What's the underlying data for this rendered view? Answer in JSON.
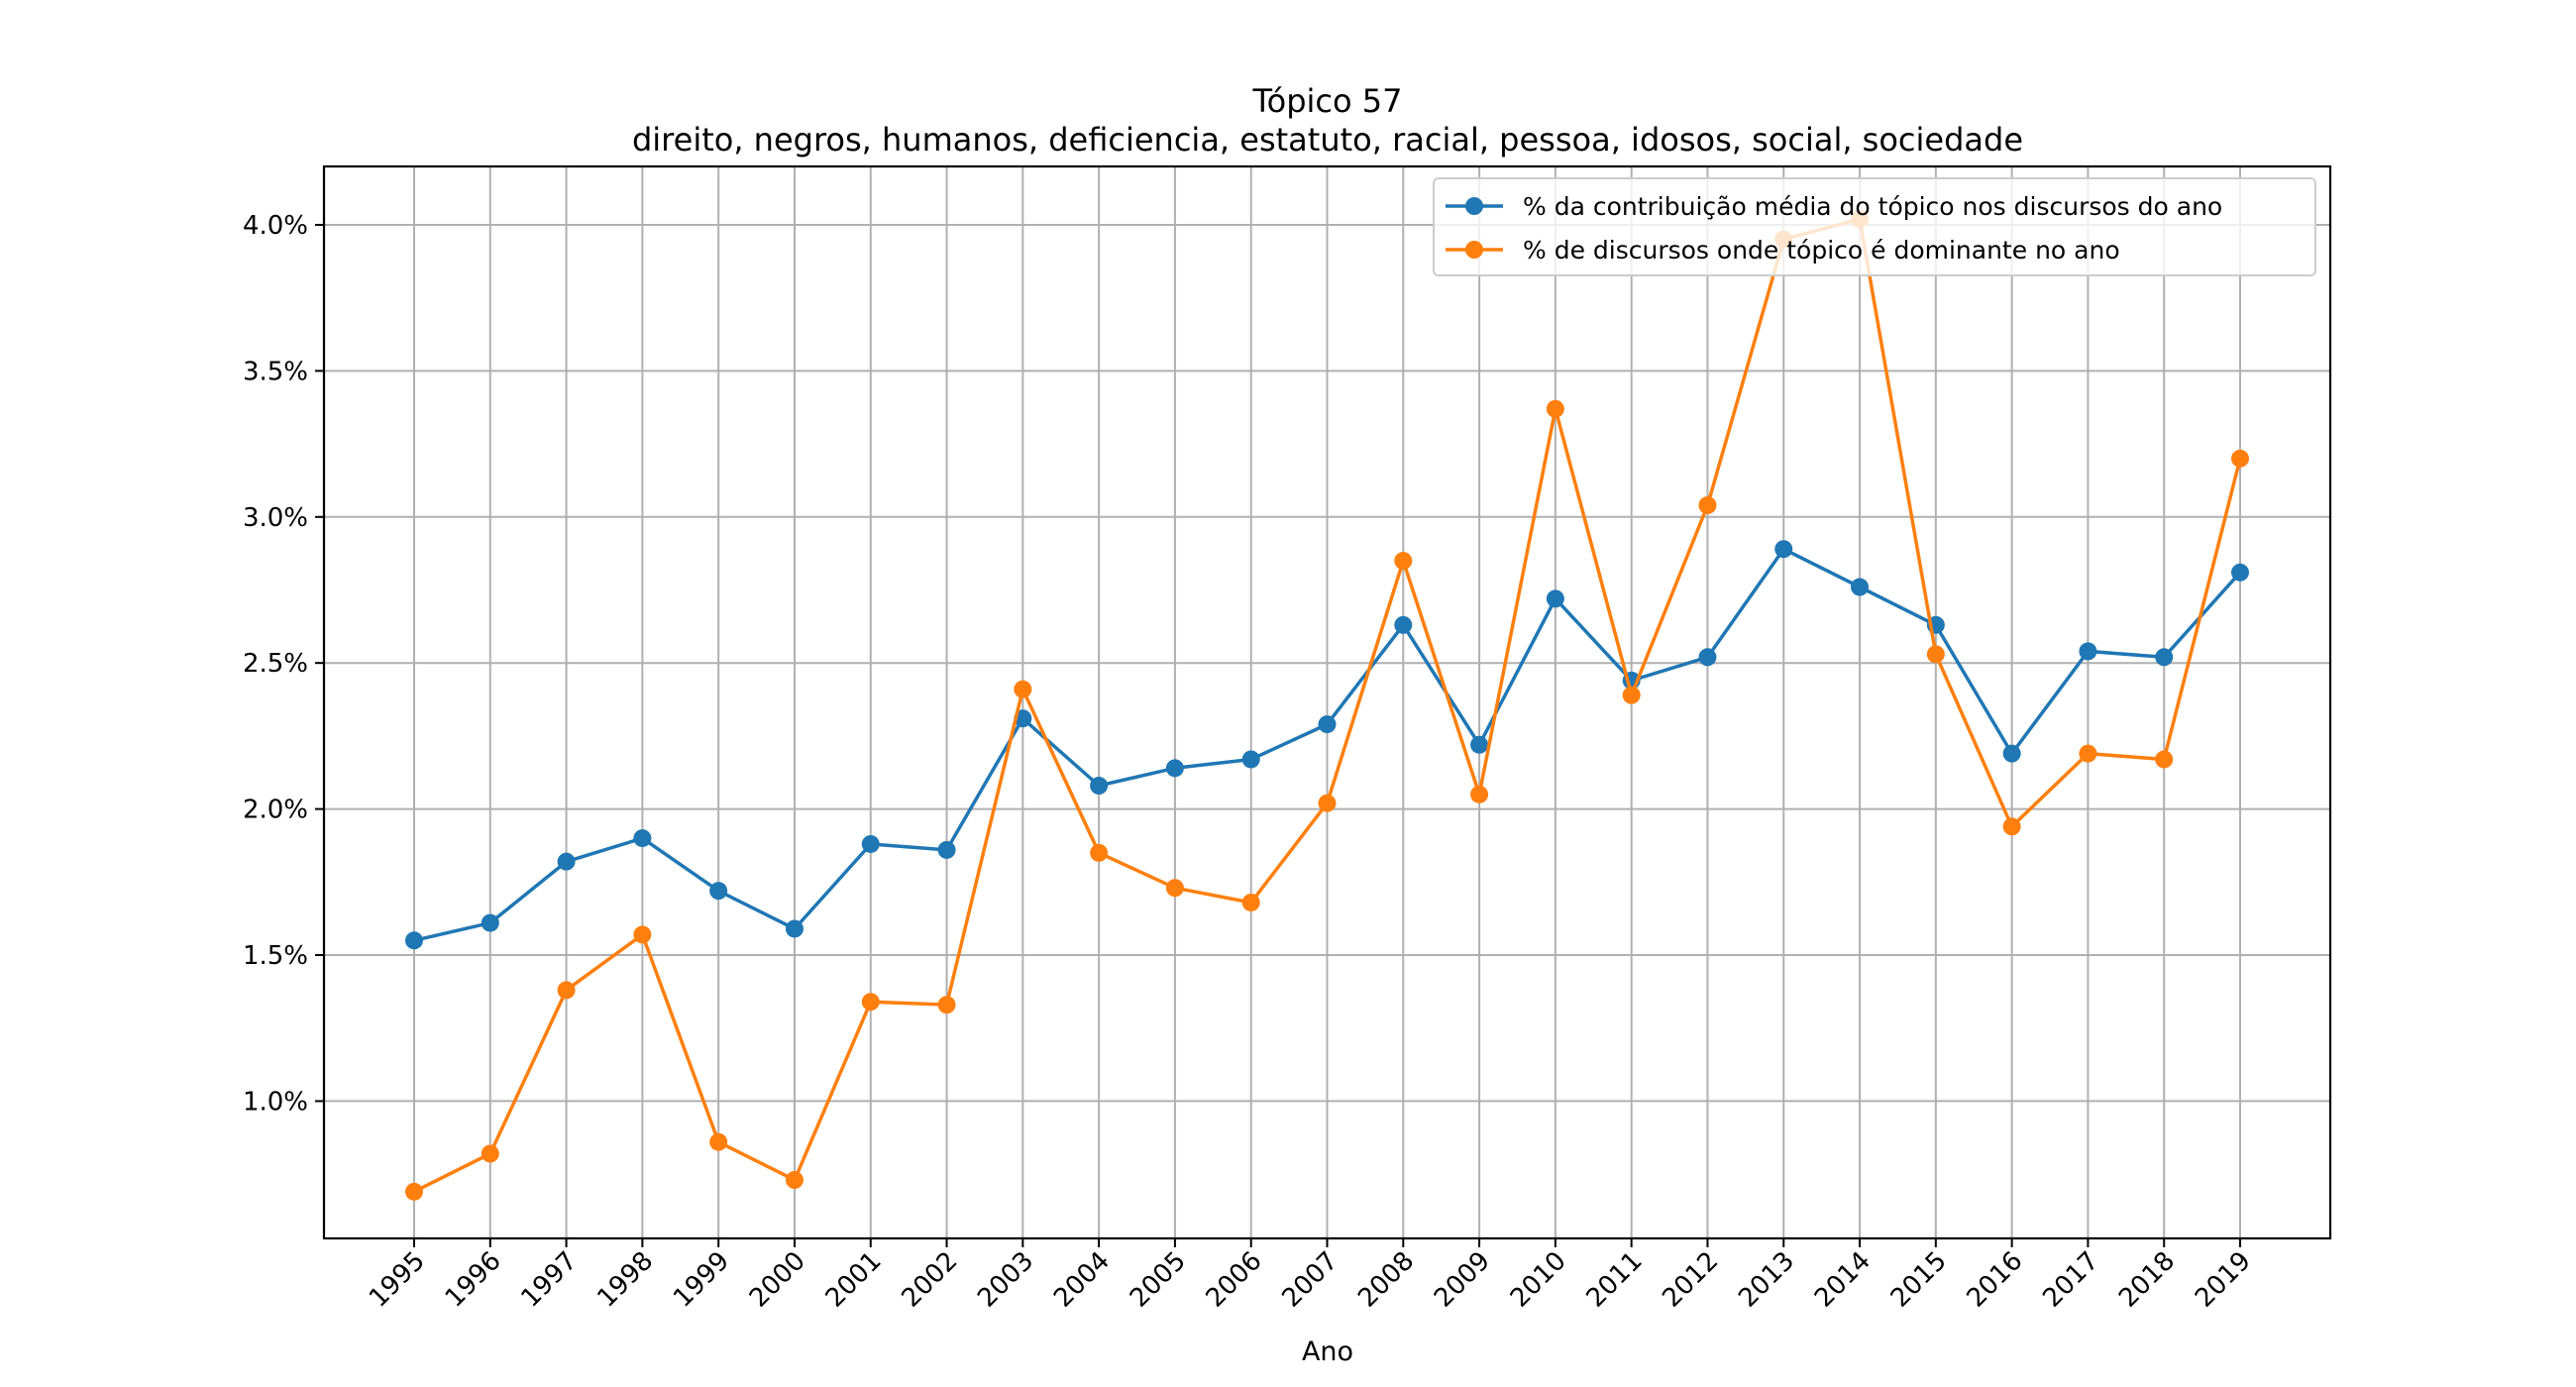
{
  "chart_data": {
    "type": "line",
    "title": "Tópico 57",
    "subtitle": "direito, negros, humanos, deficiencia, estatuto, racial, pessoa, idosos, social, sociedade",
    "xlabel": "Ano",
    "ylabel": "",
    "categories": [
      "1995",
      "1996",
      "1997",
      "1998",
      "1999",
      "2000",
      "2001",
      "2002",
      "2003",
      "2004",
      "2005",
      "2006",
      "2007",
      "2008",
      "2009",
      "2010",
      "2011",
      "2012",
      "2013",
      "2014",
      "2015",
      "2016",
      "2017",
      "2018",
      "2019"
    ],
    "y_ticks": [
      1.0,
      1.5,
      2.0,
      2.5,
      3.0,
      3.5,
      4.0
    ],
    "y_tick_labels": [
      "1.0%",
      "1.5%",
      "2.0%",
      "2.5%",
      "3.0%",
      "3.5%",
      "4.0%"
    ],
    "ylim": [
      0.53,
      4.2
    ],
    "grid": true,
    "legend_position": "top-right",
    "series": [
      {
        "name": "% da contribuição média do tópico nos discursos do ano",
        "color": "#1f77b4",
        "marker": "circle",
        "values": [
          1.55,
          1.61,
          1.82,
          1.9,
          1.72,
          1.59,
          1.88,
          1.86,
          2.31,
          2.08,
          2.14,
          2.17,
          2.29,
          2.63,
          2.22,
          2.72,
          2.44,
          2.52,
          2.89,
          2.76,
          2.63,
          2.19,
          2.54,
          2.52,
          2.81
        ]
      },
      {
        "name": "% de discursos onde tópico é dominante no ano",
        "color": "#ff7f0e",
        "marker": "circle",
        "values": [
          0.69,
          0.82,
          1.38,
          1.57,
          0.86,
          0.73,
          1.34,
          1.33,
          2.41,
          1.85,
          1.73,
          1.68,
          2.02,
          2.85,
          2.05,
          3.37,
          2.39,
          3.04,
          3.95,
          4.02,
          2.53,
          1.94,
          2.19,
          2.17,
          3.2
        ]
      }
    ]
  }
}
